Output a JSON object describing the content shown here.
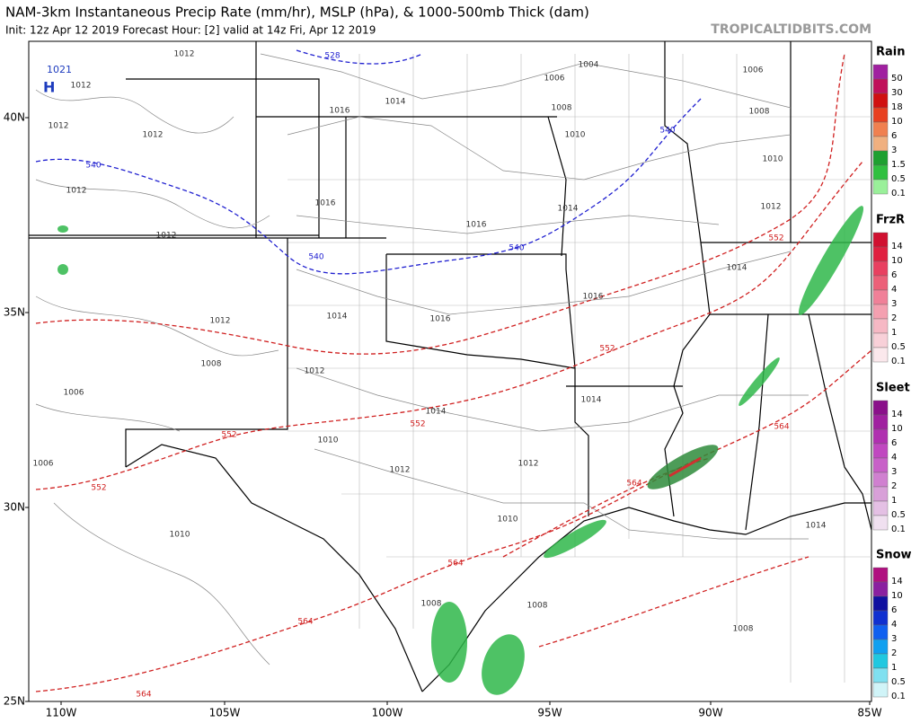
{
  "header": {
    "title": "NAM-3km Instantaneous Precip Rate (mm/hr), MSLP (hPa), & 1000-500mb Thick (dam)",
    "subtitle": "Init: 12z Apr 12 2019   Forecast Hour: [2]   valid at 14z Fri, Apr 12 2019",
    "watermark": "TROPICALTIDBITS.COM"
  },
  "map": {
    "lat_labels": [
      "40N",
      "35N",
      "30N",
      "25N"
    ],
    "lon_labels": [
      "110W",
      "105W",
      "100W",
      "95W",
      "90W",
      "85W"
    ],
    "high": {
      "value": "1021",
      "letter": "H"
    },
    "isobar_labels": [
      "1012",
      "1012",
      "1012",
      "1012",
      "1012",
      "1012",
      "1012",
      "1012",
      "1012",
      "1012",
      "1012",
      "1016",
      "1016",
      "1016",
      "1016",
      "1016",
      "1014",
      "1014",
      "1014",
      "1014",
      "1014",
      "1014",
      "1014",
      "1010",
      "1010",
      "1010",
      "1010",
      "1010",
      "1008",
      "1008",
      "1008",
      "1008",
      "1008",
      "1008",
      "1006",
      "1006",
      "1006",
      "1006",
      "1004"
    ],
    "thickness_labels": [
      "528",
      "540",
      "540",
      "540",
      "540",
      "552",
      "552",
      "552",
      "552",
      "552",
      "564",
      "564",
      "564",
      "564",
      "564"
    ]
  },
  "legend": [
    {
      "name": "Rain",
      "labels": [
        "50",
        "30",
        "18",
        "10",
        "6",
        "3",
        "1.5",
        "0.5",
        "0.1"
      ]
    },
    {
      "name": "FrzR",
      "labels": [
        "14",
        "10",
        "6",
        "4",
        "3",
        "2",
        "1",
        "0.5",
        "0.1"
      ]
    },
    {
      "name": "Sleet",
      "labels": [
        "14",
        "10",
        "6",
        "4",
        "3",
        "2",
        "1",
        "0.5",
        "0.1"
      ]
    },
    {
      "name": "Snow",
      "labels": [
        "14",
        "10",
        "6",
        "4",
        "3",
        "2",
        "1",
        "0.5",
        "0.1"
      ]
    }
  ]
}
